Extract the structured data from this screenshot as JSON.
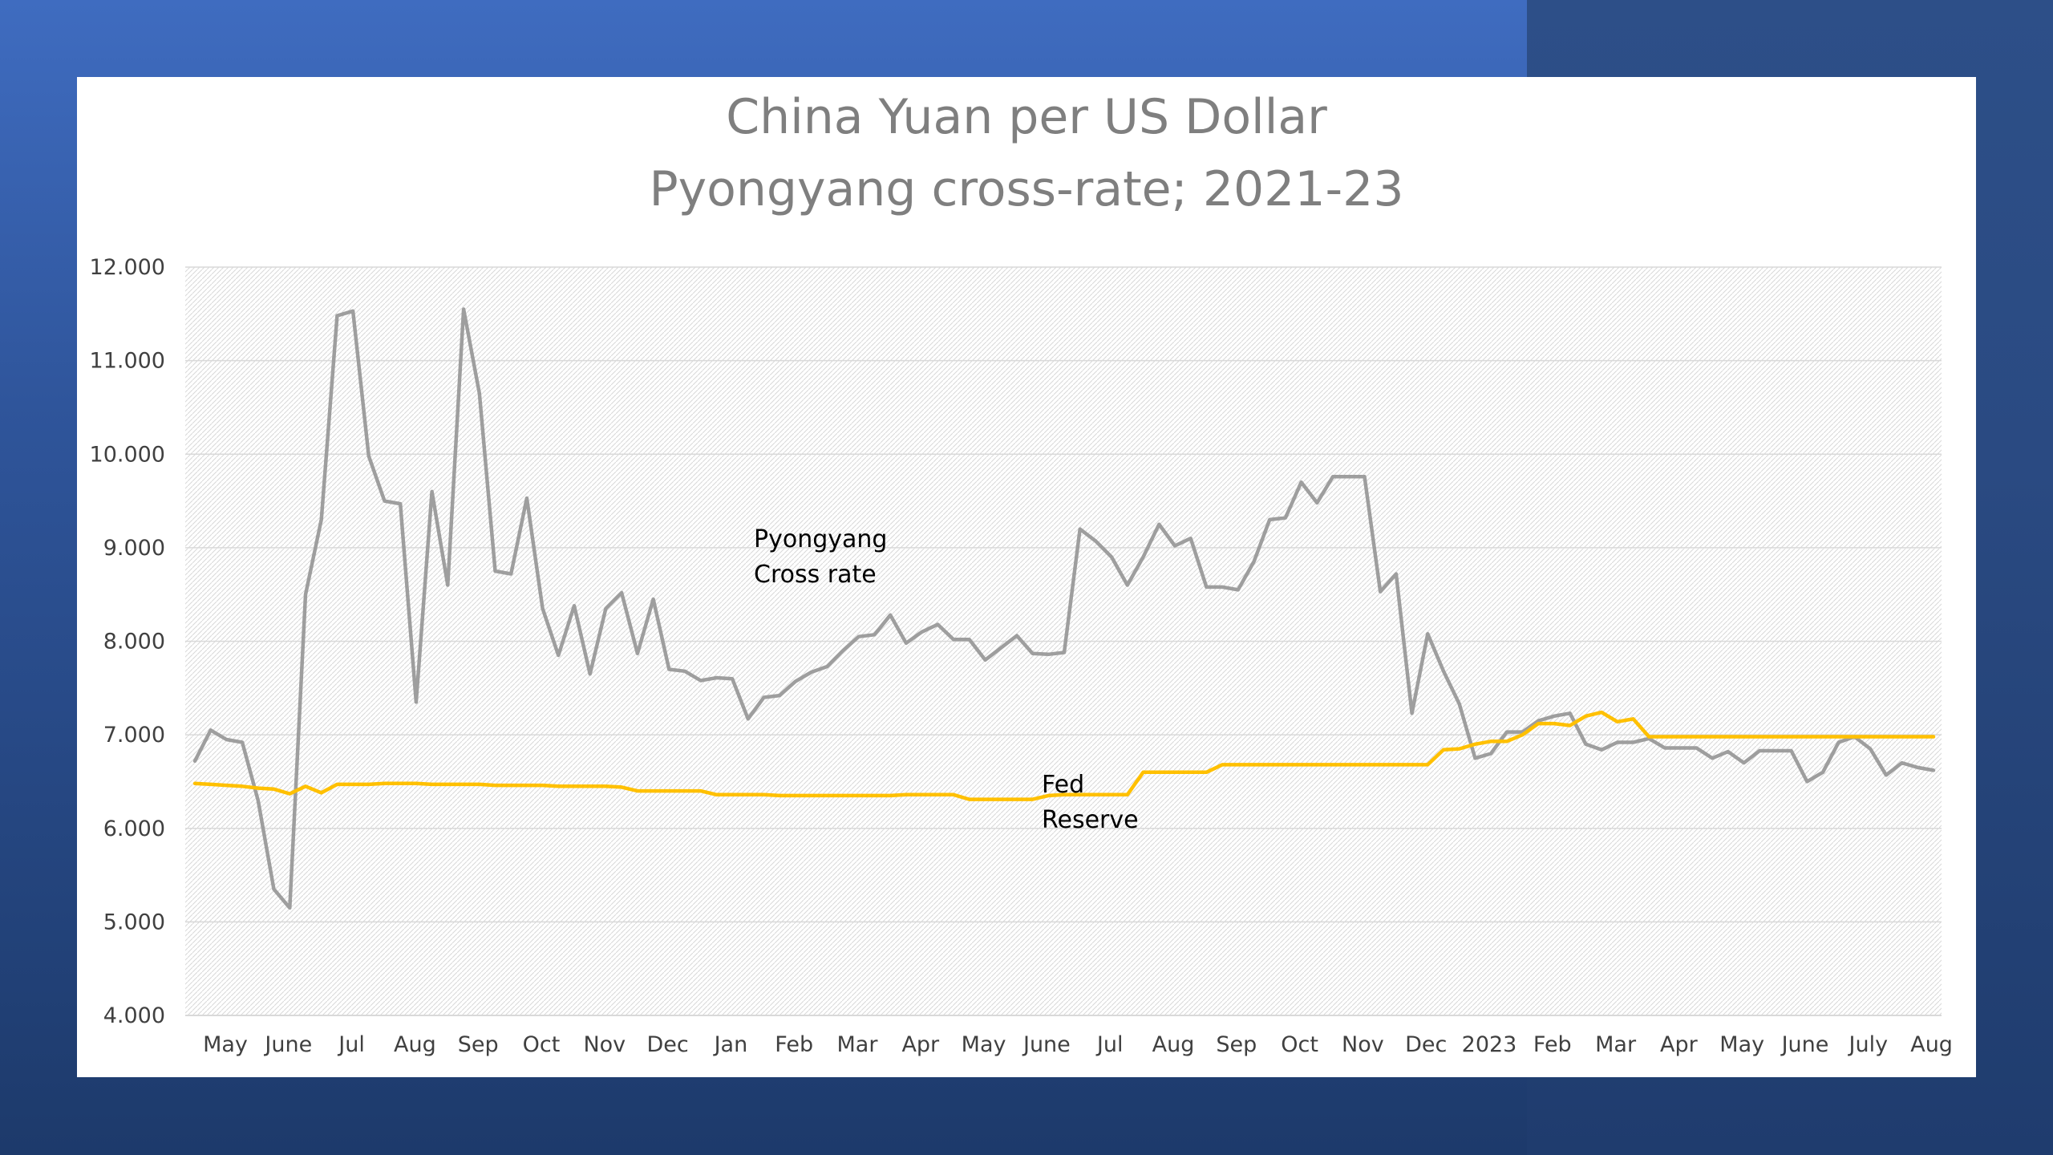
{
  "chart_data": {
    "type": "line",
    "title": "China Yuan per US Dollar",
    "subtitle": "Pyongyang cross-rate; 2021-23",
    "xlabel": "",
    "ylabel": "",
    "ylim": [
      4.0,
      12.0
    ],
    "y_ticks": [
      "12.000",
      "11.000",
      "10.000",
      "9.000",
      "8.000",
      "7.000",
      "6.000",
      "5.000",
      "4.000"
    ],
    "x_tick_labels": [
      "May",
      "June",
      "Jul",
      "Aug",
      "Sep",
      "Oct",
      "Nov",
      "Dec",
      "Jan",
      "Feb",
      "Mar",
      "Apr",
      "May",
      "June",
      "Jul",
      "Aug",
      "Sep",
      "Oct",
      "Nov",
      "Dec",
      "2023",
      "Feb",
      "Mar",
      "Apr",
      "May",
      "June",
      "July",
      "Aug"
    ],
    "grid": true,
    "colors": {
      "pyongyang": "#9e9e9e",
      "fed": "#ffc000"
    },
    "annotations": [
      {
        "lines": [
          "Pyongyang",
          "Cross rate"
        ],
        "series": "pyongyang"
      },
      {
        "lines": [
          "Fed",
          "Reserve"
        ],
        "series": "fed"
      }
    ],
    "series": [
      {
        "name": "Pyongyang Cross rate",
        "color": "#9e9e9e",
        "values": [
          6.72,
          7.05,
          6.95,
          6.92,
          6.3,
          5.35,
          5.15,
          8.5,
          9.3,
          11.48,
          11.53,
          9.98,
          9.5,
          9.47,
          7.35,
          9.6,
          8.6,
          11.55,
          10.65,
          8.75,
          8.72,
          9.53,
          8.35,
          7.85,
          8.38,
          7.65,
          8.35,
          8.52,
          7.87,
          8.45,
          7.7,
          7.68,
          7.58,
          7.61,
          7.6,
          7.17,
          7.4,
          7.42,
          7.57,
          7.67,
          7.73,
          7.9,
          8.05,
          8.07,
          8.28,
          7.98,
          8.1,
          8.18,
          8.02,
          8.02,
          7.8,
          7.93,
          8.06,
          7.87,
          7.86,
          7.88,
          9.2,
          9.07,
          8.9,
          8.6,
          8.9,
          9.25,
          9.02,
          9.1,
          8.58,
          8.58,
          8.55,
          8.85,
          9.3,
          9.32,
          9.7,
          9.48,
          9.76,
          9.76,
          9.76,
          8.53,
          8.72,
          7.23,
          8.08,
          7.68,
          7.33,
          6.75,
          6.8,
          7.03,
          7.03,
          7.15,
          7.2,
          7.23,
          6.9,
          6.84,
          6.92,
          6.92,
          6.96,
          6.86,
          6.86,
          6.86,
          6.75,
          6.82,
          6.7,
          6.83,
          6.83,
          6.83,
          6.5,
          6.6,
          6.92,
          6.98,
          6.85,
          6.57,
          6.7,
          6.65,
          6.62
        ]
      },
      {
        "name": "Fed Reserve",
        "color": "#ffc000",
        "values": [
          6.48,
          6.47,
          6.46,
          6.45,
          6.43,
          6.42,
          6.37,
          6.45,
          6.38,
          6.47,
          6.47,
          6.47,
          6.48,
          6.48,
          6.48,
          6.47,
          6.47,
          6.47,
          6.47,
          6.46,
          6.46,
          6.46,
          6.46,
          6.45,
          6.45,
          6.45,
          6.45,
          6.44,
          6.4,
          6.4,
          6.4,
          6.4,
          6.4,
          6.36,
          6.36,
          6.36,
          6.36,
          6.35,
          6.35,
          6.35,
          6.35,
          6.35,
          6.35,
          6.35,
          6.35,
          6.36,
          6.36,
          6.36,
          6.36,
          6.31,
          6.31,
          6.31,
          6.31,
          6.31,
          6.35,
          6.36,
          6.36,
          6.36,
          6.36,
          6.36,
          6.6,
          6.6,
          6.6,
          6.6,
          6.6,
          6.68,
          6.68,
          6.68,
          6.68,
          6.68,
          6.68,
          6.68,
          6.68,
          6.68,
          6.68,
          6.68,
          6.68,
          6.68,
          6.68,
          6.84,
          6.85,
          6.9,
          6.93,
          6.93,
          7.0,
          7.12,
          7.12,
          7.1,
          7.2,
          7.24,
          7.14,
          7.17,
          6.98,
          6.98,
          6.98,
          6.98,
          6.98,
          6.98,
          6.98,
          6.98,
          6.98,
          6.98,
          6.98,
          6.98,
          6.98,
          6.98,
          6.98,
          6.98,
          6.98,
          6.98,
          6.98
        ]
      }
    ]
  }
}
